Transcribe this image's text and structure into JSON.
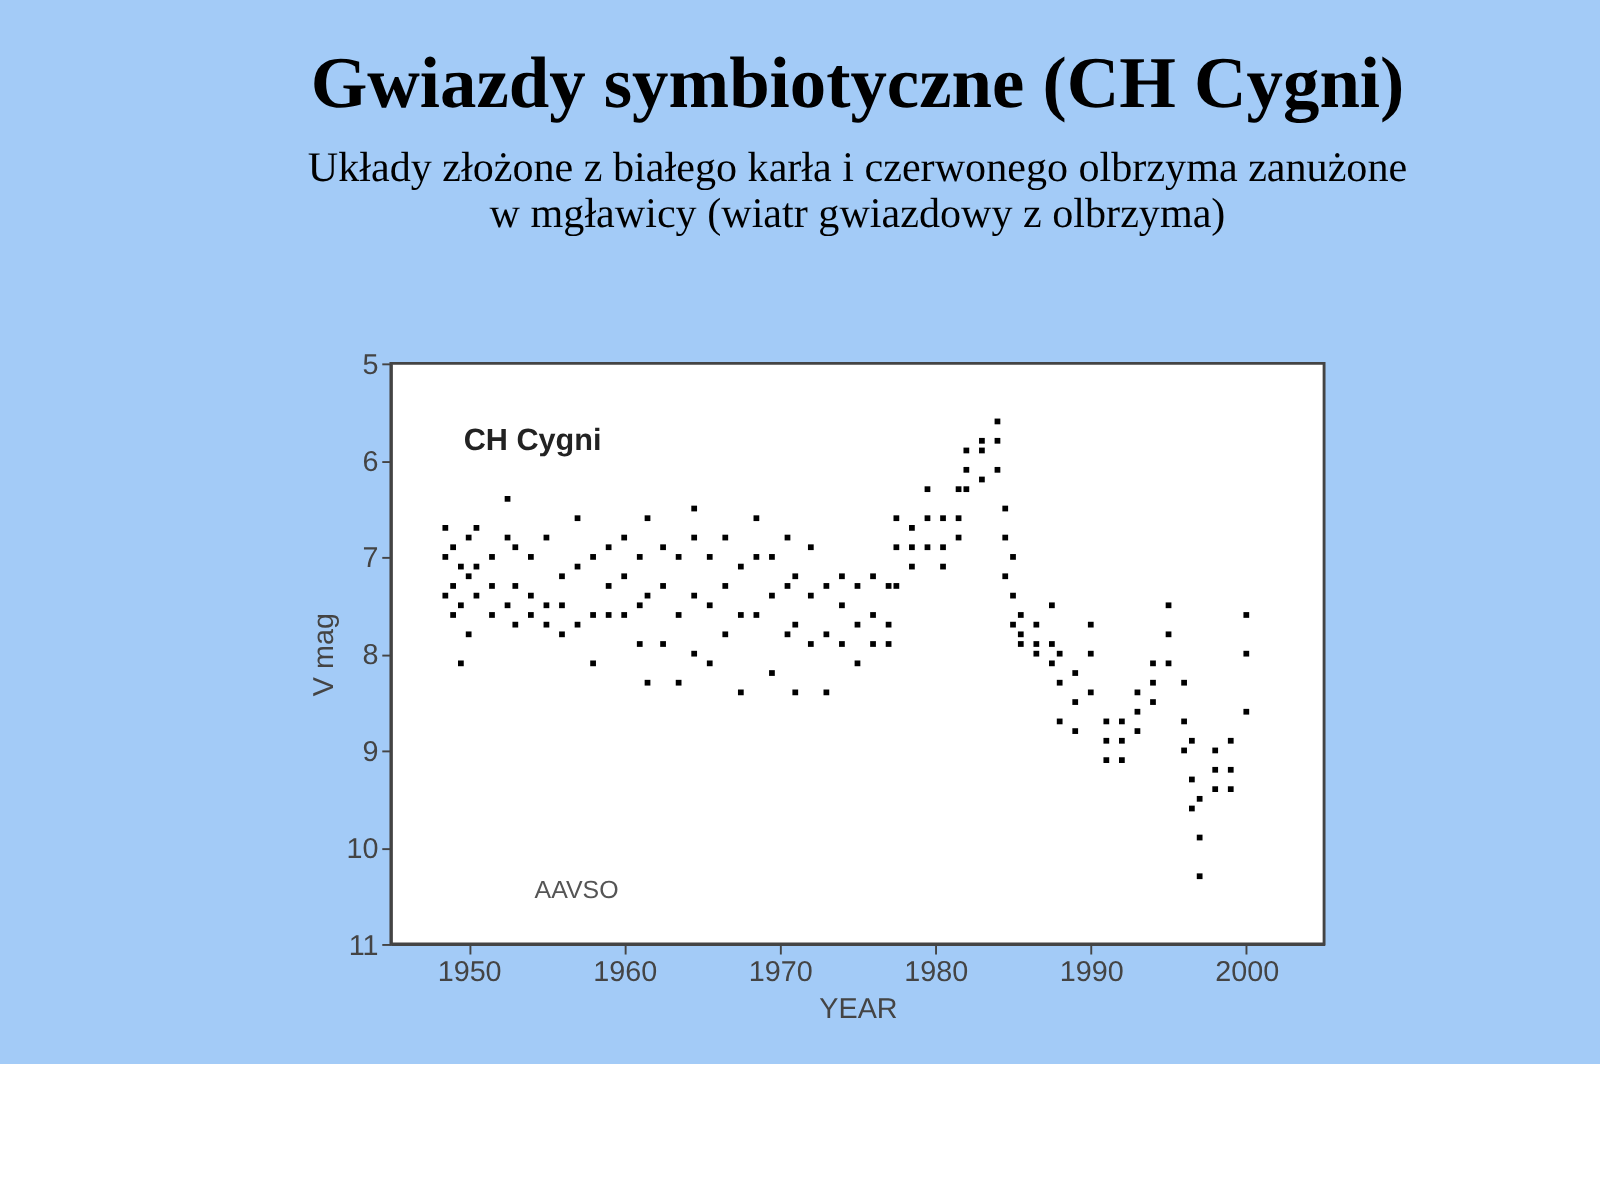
{
  "chart_data": {
    "type": "scatter",
    "title": "Gwiazdy symbiotyczne (CH Cygni)",
    "subtitle": [
      "Układy złożone z białego karła i czerwonego olbrzyma zanużone",
      "w mgławicy (wiatr gwiazdowy z olbrzyma)"
    ],
    "xlabel": "YEAR",
    "ylabel": "V mag",
    "annotations": [
      "CH Cygni",
      "AAVSO"
    ],
    "xlim": [
      1945,
      2005
    ],
    "xticks": [
      1950,
      1960,
      1970,
      1980,
      1990,
      2000
    ],
    "ylim": [
      11,
      5
    ],
    "yticks": [
      5,
      6,
      7,
      8,
      9,
      10,
      11
    ],
    "grid": false,
    "marker": "square",
    "series": [
      {
        "color": "#000000",
        "x": [
          1948.5,
          1948.5,
          1948.5,
          1949.0,
          1949.0,
          1949.0,
          1949.5,
          1949.5,
          1949.5,
          1950.0,
          1950.0,
          1950.0,
          1950.5,
          1950.5,
          1950.5,
          1951.5,
          1951.5,
          1951.5,
          1952.5,
          1952.5,
          1952.5,
          1953.0,
          1953.0,
          1953.0,
          1954.0,
          1954.0,
          1954.0,
          1955.0,
          1955.0,
          1955.0,
          1956.0,
          1956.0,
          1956.0,
          1957.0,
          1957.0,
          1957.0,
          1958.0,
          1958.0,
          1958.0,
          1959.0,
          1959.0,
          1959.0,
          1960.0,
          1960.0,
          1960.0,
          1961.0,
          1961.0,
          1961.0,
          1961.5,
          1961.5,
          1961.5,
          1962.5,
          1962.5,
          1962.5,
          1963.5,
          1963.5,
          1963.5,
          1964.5,
          1964.5,
          1964.5,
          1964.5,
          1965.5,
          1965.5,
          1965.5,
          1966.5,
          1966.5,
          1966.5,
          1967.5,
          1967.5,
          1967.5,
          1968.5,
          1968.5,
          1968.5,
          1969.5,
          1969.5,
          1969.5,
          1970.5,
          1970.5,
          1970.5,
          1971.0,
          1971.0,
          1971.0,
          1972.0,
          1972.0,
          1972.0,
          1973.0,
          1973.0,
          1973.0,
          1974.0,
          1974.0,
          1974.0,
          1975.0,
          1975.0,
          1975.0,
          1976.0,
          1976.0,
          1976.0,
          1977.0,
          1977.0,
          1977.0,
          1977.5,
          1977.5,
          1977.5,
          1978.5,
          1978.5,
          1978.5,
          1979.5,
          1979.5,
          1979.5,
          1980.5,
          1980.5,
          1980.5,
          1981.5,
          1981.5,
          1981.5,
          1982.0,
          1982.0,
          1982.0,
          1983.0,
          1983.0,
          1983.0,
          1984.0,
          1984.0,
          1984.0,
          1984.5,
          1984.5,
          1984.5,
          1985.0,
          1985.0,
          1985.0,
          1985.5,
          1985.5,
          1985.5,
          1986.5,
          1986.5,
          1986.5,
          1987.5,
          1987.5,
          1987.5,
          1988.0,
          1988.0,
          1988.0,
          1989.0,
          1989.0,
          1989.0,
          1990.0,
          1990.0,
          1990.0,
          1991.0,
          1991.0,
          1991.0,
          1992.0,
          1992.0,
          1992.0,
          1993.0,
          1993.0,
          1993.0,
          1994.0,
          1994.0,
          1994.0,
          1995.0,
          1995.0,
          1995.0,
          1996.0,
          1996.0,
          1996.0,
          1996.5,
          1996.5,
          1996.5,
          1997.0,
          1997.0,
          1997.0,
          1998.0,
          1998.0,
          1998.0,
          1999.0,
          1999.0,
          1999.0,
          2000.0,
          2000.0,
          2000.0
        ],
        "values": [
          6.7,
          7.0,
          7.4,
          6.9,
          7.3,
          7.6,
          7.1,
          7.5,
          8.1,
          6.8,
          7.2,
          7.8,
          6.7,
          7.1,
          7.4,
          7.0,
          7.3,
          7.6,
          6.4,
          6.8,
          7.5,
          6.9,
          7.3,
          7.7,
          7.0,
          7.4,
          7.6,
          6.8,
          7.5,
          7.7,
          7.2,
          7.5,
          7.8,
          6.6,
          7.1,
          7.7,
          7.0,
          7.6,
          8.1,
          6.9,
          7.3,
          7.6,
          6.8,
          7.2,
          7.6,
          7.0,
          7.5,
          7.9,
          6.6,
          7.4,
          8.3,
          6.9,
          7.3,
          7.9,
          7.0,
          7.6,
          8.3,
          6.5,
          6.8,
          7.4,
          8.0,
          7.0,
          7.5,
          8.1,
          6.8,
          7.3,
          7.8,
          7.1,
          7.6,
          8.4,
          6.6,
          7.0,
          7.6,
          7.0,
          7.4,
          8.2,
          6.8,
          7.3,
          7.8,
          7.2,
          7.7,
          8.4,
          6.9,
          7.4,
          7.9,
          7.3,
          7.8,
          8.4,
          7.2,
          7.5,
          7.9,
          7.3,
          7.7,
          8.1,
          7.2,
          7.6,
          7.9,
          7.3,
          7.7,
          7.9,
          6.6,
          6.9,
          7.3,
          6.7,
          6.9,
          7.1,
          6.3,
          6.6,
          6.9,
          6.6,
          6.9,
          7.1,
          6.3,
          6.6,
          6.8,
          5.9,
          6.1,
          6.3,
          5.8,
          5.9,
          6.2,
          5.6,
          5.8,
          6.1,
          6.5,
          6.8,
          7.2,
          7.0,
          7.4,
          7.7,
          7.6,
          7.8,
          7.9,
          7.7,
          7.9,
          8.0,
          7.5,
          7.9,
          8.1,
          8.0,
          8.3,
          8.7,
          8.2,
          8.5,
          8.8,
          7.7,
          8.0,
          8.4,
          8.7,
          8.9,
          9.1,
          8.7,
          8.9,
          9.1,
          8.4,
          8.6,
          8.8,
          8.1,
          8.3,
          8.5,
          7.5,
          7.8,
          8.1,
          8.3,
          8.7,
          9.0,
          8.9,
          9.3,
          9.6,
          9.5,
          9.9,
          10.3,
          9.0,
          9.2,
          9.4,
          8.9,
          9.2,
          9.4,
          7.6,
          8.0,
          8.6
        ]
      }
    ]
  }
}
